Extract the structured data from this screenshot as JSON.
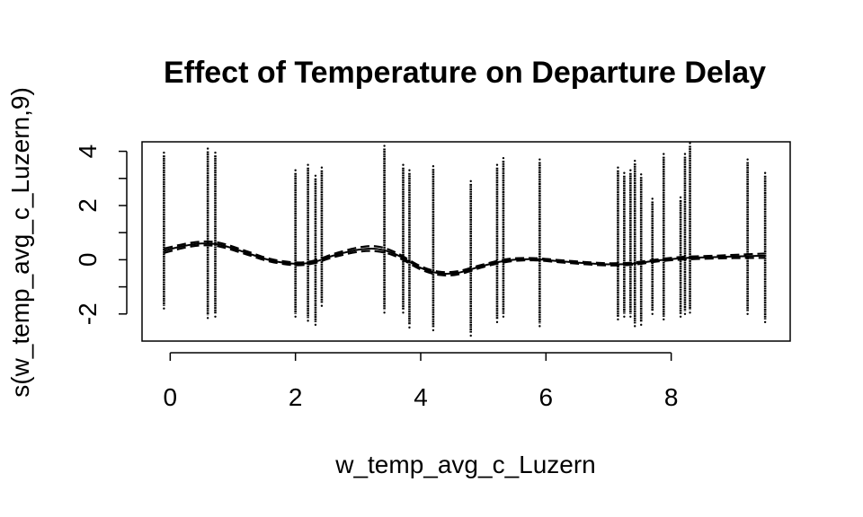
{
  "chart_data": {
    "type": "line",
    "title": "Effect of Temperature on Departure Delay",
    "xlabel": "w_temp_avg_c_Luzern",
    "ylabel": "s(w_temp_avg_c_Luzern,9)",
    "xlim": [
      -0.45,
      9.9
    ],
    "ylim": [
      -3.0,
      4.35
    ],
    "x_ticks": [
      0,
      2,
      4,
      6,
      8
    ],
    "x_tick_labels": [
      "0",
      "2",
      "4",
      "6",
      "8"
    ],
    "y_ticks": [
      -2,
      0,
      2,
      4
    ],
    "y_tick_labels": [
      "-2",
      "0",
      "2",
      "4"
    ],
    "y_minor_ticks": [
      -1,
      1,
      3
    ],
    "grid": false,
    "legend": "none",
    "colors": {
      "line": "#000000",
      "background": "#ffffff"
    },
    "series": [
      {
        "role": "estimate",
        "style": "solid",
        "x": [
          -0.1,
          0.2,
          0.5,
          0.8,
          1.2,
          1.6,
          2.0,
          2.3,
          2.6,
          3.0,
          3.3,
          3.6,
          4.0,
          4.3,
          4.6,
          5.0,
          5.4,
          5.8,
          6.2,
          6.6,
          7.0,
          7.4,
          7.8,
          8.2,
          8.6,
          9.0,
          9.5
        ],
        "y": [
          0.33,
          0.5,
          0.6,
          0.55,
          0.27,
          -0.02,
          -0.15,
          -0.08,
          0.15,
          0.37,
          0.4,
          0.2,
          -0.3,
          -0.5,
          -0.48,
          -0.22,
          -0.02,
          0.02,
          -0.05,
          -0.12,
          -0.17,
          -0.14,
          -0.02,
          0.06,
          0.09,
          0.12,
          0.15
        ]
      },
      {
        "role": "upper-band",
        "style": "dashed",
        "x": [
          -0.1,
          0.2,
          0.5,
          0.8,
          1.2,
          1.6,
          2.0,
          2.3,
          2.6,
          3.0,
          3.3,
          3.6,
          4.0,
          4.3,
          4.6,
          5.0,
          5.4,
          5.8,
          6.2,
          6.6,
          7.0,
          7.4,
          7.8,
          8.2,
          8.6,
          9.0,
          9.5
        ],
        "y": [
          0.41,
          0.57,
          0.67,
          0.62,
          0.33,
          0.03,
          -0.1,
          -0.03,
          0.21,
          0.45,
          0.49,
          0.27,
          -0.24,
          -0.44,
          -0.42,
          -0.17,
          0.03,
          0.06,
          -0.01,
          -0.08,
          -0.13,
          -0.1,
          0.02,
          0.11,
          0.14,
          0.18,
          0.23
        ]
      },
      {
        "role": "lower-band",
        "style": "dashed",
        "x": [
          -0.1,
          0.2,
          0.5,
          0.8,
          1.2,
          1.6,
          2.0,
          2.3,
          2.6,
          3.0,
          3.3,
          3.6,
          4.0,
          4.3,
          4.6,
          5.0,
          5.4,
          5.8,
          6.2,
          6.6,
          7.0,
          7.4,
          7.8,
          8.2,
          8.6,
          9.0,
          9.5
        ],
        "y": [
          0.25,
          0.43,
          0.53,
          0.48,
          0.21,
          -0.07,
          -0.2,
          -0.13,
          0.09,
          0.29,
          0.31,
          0.13,
          -0.36,
          -0.56,
          -0.54,
          -0.27,
          -0.07,
          -0.02,
          -0.09,
          -0.16,
          -0.21,
          -0.18,
          -0.06,
          0.01,
          0.04,
          0.06,
          0.07
        ]
      }
    ],
    "partial_residuals": [
      {
        "x": -0.1,
        "min": -1.7,
        "max": 3.85
      },
      {
        "x": 0.6,
        "min": -2.05,
        "max": 4.0
      },
      {
        "x": 0.72,
        "min": -2.0,
        "max": 3.85
      },
      {
        "x": 2.0,
        "min": -2.0,
        "max": 3.2
      },
      {
        "x": 2.2,
        "min": -2.15,
        "max": 3.4
      },
      {
        "x": 2.32,
        "min": -2.3,
        "max": 3.0
      },
      {
        "x": 2.42,
        "min": -1.6,
        "max": 3.3
      },
      {
        "x": 3.42,
        "min": -1.85,
        "max": 4.1
      },
      {
        "x": 3.72,
        "min": -1.85,
        "max": 3.4
      },
      {
        "x": 3.82,
        "min": -2.4,
        "max": 3.2
      },
      {
        "x": 4.2,
        "min": -2.5,
        "max": 3.35
      },
      {
        "x": 4.8,
        "min": -2.7,
        "max": 2.8
      },
      {
        "x": 5.22,
        "min": -2.2,
        "max": 3.4
      },
      {
        "x": 5.32,
        "min": -2.0,
        "max": 3.65
      },
      {
        "x": 5.9,
        "min": -2.35,
        "max": 3.6
      },
      {
        "x": 7.15,
        "min": -2.1,
        "max": 3.3
      },
      {
        "x": 7.25,
        "min": -2.0,
        "max": 3.1
      },
      {
        "x": 7.35,
        "min": -2.0,
        "max": 3.2
      },
      {
        "x": 7.42,
        "min": -2.35,
        "max": 3.55
      },
      {
        "x": 7.52,
        "min": -2.3,
        "max": 3.05
      },
      {
        "x": 7.7,
        "min": -1.9,
        "max": 2.15
      },
      {
        "x": 7.88,
        "min": -2.1,
        "max": 3.8
      },
      {
        "x": 8.15,
        "min": -2.0,
        "max": 2.2
      },
      {
        "x": 8.22,
        "min": -1.9,
        "max": 3.8
      },
      {
        "x": 8.3,
        "min": -1.85,
        "max": 4.2
      },
      {
        "x": 9.22,
        "min": -1.9,
        "max": 3.6
      },
      {
        "x": 9.5,
        "min": -2.2,
        "max": 3.1
      }
    ]
  }
}
